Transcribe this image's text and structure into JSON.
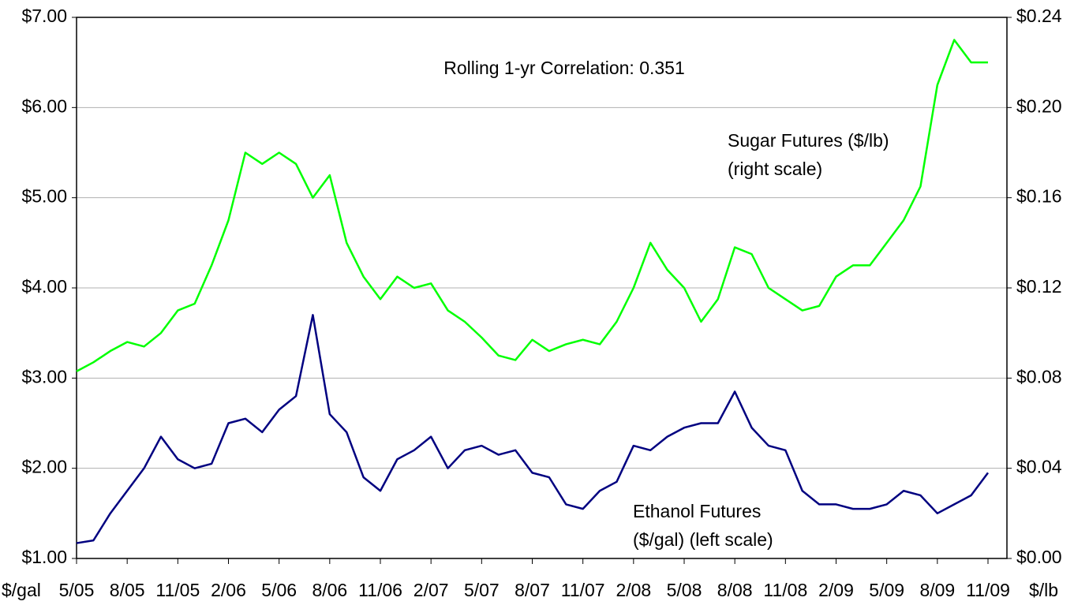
{
  "chart_data": {
    "type": "line",
    "annotations": [
      "Rolling 1-yr Correlation: 0.351",
      [
        "Sugar Futures ($/lb)",
        "(right scale)"
      ],
      [
        "Ethanol Futures",
        "($/gal) (left scale)"
      ]
    ],
    "ylabel": "$/gal",
    "y2label": "$/lb",
    "categories": [
      "5/05",
      null,
      null,
      "8/05",
      null,
      null,
      "11/05",
      null,
      null,
      "2/06",
      null,
      null,
      "5/06",
      null,
      null,
      "8/06",
      null,
      null,
      "11/06",
      null,
      null,
      "2/07",
      null,
      null,
      "5/07",
      null,
      null,
      "8/07",
      null,
      null,
      "11/07",
      null,
      null,
      "2/08",
      null,
      null,
      "5/08",
      null,
      null,
      "8/08",
      null,
      null,
      "11/08",
      null,
      null,
      "2/09",
      null,
      null,
      "5/09",
      null,
      null,
      "8/09",
      null,
      null,
      "11/09"
    ],
    "series": [
      {
        "name": "Ethanol Futures",
        "color": "#000080",
        "axis": "y",
        "values": [
          1.17,
          1.2,
          1.5,
          1.75,
          2.0,
          2.35,
          2.1,
          2.0,
          2.05,
          2.5,
          2.55,
          2.4,
          2.65,
          2.8,
          3.7,
          2.6,
          2.4,
          1.9,
          1.75,
          2.1,
          2.2,
          2.35,
          2.0,
          2.2,
          2.25,
          2.15,
          2.2,
          1.95,
          1.9,
          1.6,
          1.55,
          1.75,
          1.85,
          2.25,
          2.2,
          2.35,
          2.45,
          2.5,
          2.5,
          2.85,
          2.45,
          2.25,
          2.2,
          1.75,
          1.6,
          1.6,
          1.55,
          1.55,
          1.6,
          1.75,
          1.7,
          1.5,
          1.6,
          1.7,
          1.95
        ]
      },
      {
        "name": "Sugar Futures",
        "color": "#00ff00",
        "axis": "y2",
        "values": [
          0.083,
          0.087,
          0.092,
          0.096,
          0.094,
          0.1,
          0.11,
          0.113,
          0.13,
          0.15,
          0.18,
          0.175,
          0.18,
          0.175,
          0.16,
          0.17,
          0.14,
          0.125,
          0.115,
          0.125,
          0.12,
          0.122,
          0.11,
          0.105,
          0.098,
          0.09,
          0.088,
          0.097,
          0.092,
          0.095,
          0.097,
          0.095,
          0.105,
          0.12,
          0.14,
          0.128,
          0.12,
          0.105,
          0.115,
          0.138,
          0.135,
          0.12,
          0.115,
          0.11,
          0.112,
          0.125,
          0.13,
          0.13,
          0.14,
          0.15,
          0.165,
          0.21,
          0.23,
          0.22,
          0.22
        ]
      }
    ],
    "ylim": [
      1,
      7
    ],
    "yticks": [
      {
        "value": 1,
        "label": "$1.00"
      },
      {
        "value": 2,
        "label": "$2.00"
      },
      {
        "value": 3,
        "label": "$3.00"
      },
      {
        "value": 4,
        "label": "$4.00"
      },
      {
        "value": 5,
        "label": "$5.00"
      },
      {
        "value": 6,
        "label": "$6.00"
      },
      {
        "value": 7,
        "label": "$7.00"
      }
    ],
    "y2lim": [
      0,
      0.24
    ],
    "y2ticks": [
      {
        "value": 0,
        "label": "$0.00"
      },
      {
        "value": 0.04,
        "label": "$0.04"
      },
      {
        "value": 0.08,
        "label": "$0.08"
      },
      {
        "value": 0.12,
        "label": "$0.12"
      },
      {
        "value": 0.16,
        "label": "$0.16"
      },
      {
        "value": 0.2,
        "label": "$0.20"
      },
      {
        "value": 0.24,
        "label": "$0.24"
      }
    ],
    "grid": true
  }
}
